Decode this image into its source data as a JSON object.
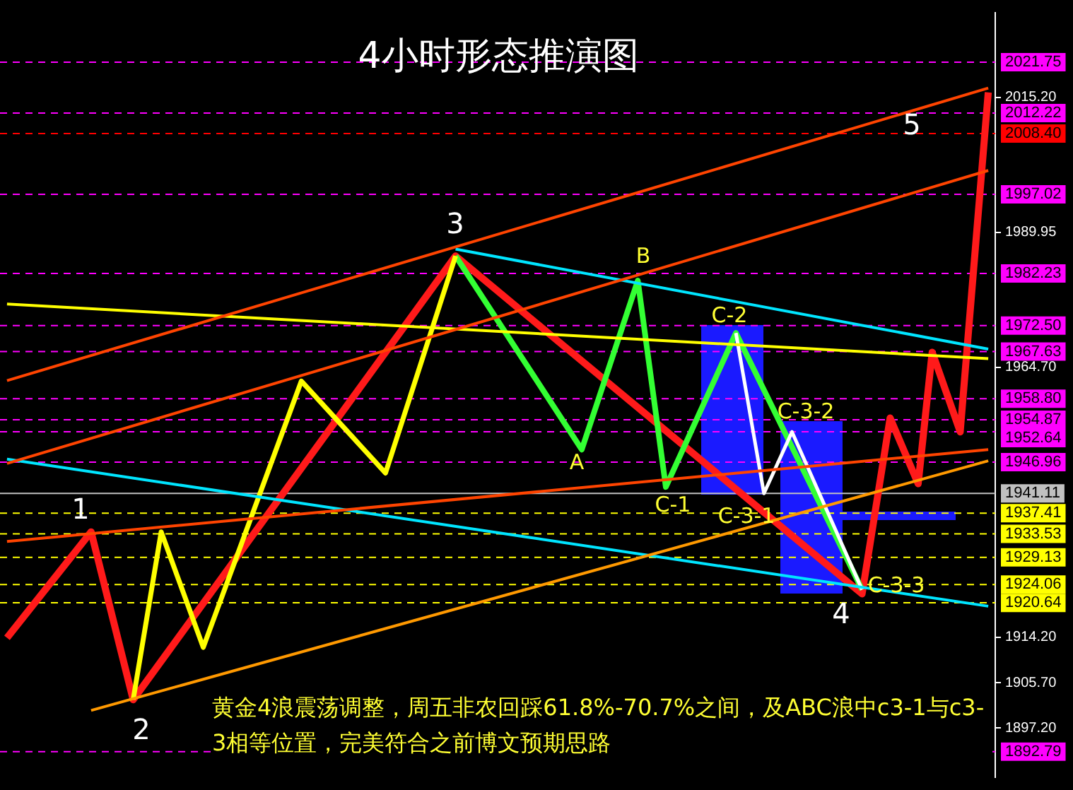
{
  "chart_data": {
    "type": "line",
    "title": "4小时形态推演图",
    "categories": [
      null,
      null,
      null,
      null,
      null,
      null,
      null,
      null,
      null,
      null,
      null,
      null,
      null,
      null,
      null,
      null,
      null,
      null,
      null,
      null,
      null,
      null,
      null,
      null,
      null,
      null,
      null,
      null,
      null,
      null,
      null,
      null,
      null,
      null,
      null,
      null,
      null,
      null,
      null,
      null,
      null,
      null,
      null,
      null,
      null,
      null,
      null,
      null,
      null,
      null,
      null,
      null,
      null,
      null,
      null,
      null,
      null,
      null,
      null,
      null,
      null,
      null,
      null,
      null,
      null,
      null,
      null,
      null,
      null,
      null,
      null
    ],
    "ylim": [
      1888,
      2031
    ],
    "yticks": [
      {
        "value": 2015.2,
        "label": "2015.20"
      },
      {
        "value": 1989.95,
        "label": "1989.95"
      },
      {
        "value": 1964.7,
        "label": "1964.70"
      },
      {
        "value": 1914.2,
        "label": "1914.20"
      },
      {
        "value": 1905.7,
        "label": "1905.70"
      },
      {
        "value": 1897.2,
        "label": "1897.20"
      }
    ],
    "tick_labels": "y",
    "grid": false,
    "legend": false,
    "marker": "none",
    "line_style": "solid",
    "series": [
      {
        "color": "#ff9900",
        "values": [
          null,
          null,
          null,
          null,
          null,
          null,
          1900.5,
          null,
          null,
          null,
          null,
          null,
          null,
          null,
          null,
          null,
          null,
          null,
          null,
          null,
          null,
          null,
          null,
          null,
          null,
          null,
          null,
          null,
          null,
          null,
          null,
          null,
          null,
          null,
          null,
          null,
          null,
          null,
          null,
          null,
          null,
          null,
          null,
          null,
          null,
          null,
          null,
          null,
          null,
          null,
          null,
          null,
          null,
          null,
          null,
          null,
          null,
          null,
          null,
          null,
          null,
          null,
          null,
          null,
          null,
          null,
          null,
          null,
          null,
          null,
          1947.2
        ]
      },
      {
        "color": "#ff4400",
        "values": [
          1932.1,
          null,
          null,
          null,
          null,
          null,
          null,
          null,
          null,
          null,
          null,
          null,
          null,
          null,
          null,
          null,
          null,
          null,
          null,
          null,
          null,
          null,
          null,
          null,
          null,
          null,
          null,
          null,
          null,
          null,
          null,
          null,
          null,
          null,
          null,
          null,
          null,
          null,
          null,
          null,
          null,
          null,
          null,
          null,
          null,
          null,
          null,
          null,
          null,
          null,
          null,
          null,
          null,
          null,
          null,
          null,
          null,
          null,
          null,
          null,
          null,
          null,
          null,
          null,
          null,
          null,
          null,
          null,
          null,
          null,
          1949.3
        ]
      },
      {
        "color": "#ff4400",
        "values": [
          1946.7,
          null,
          null,
          null,
          null,
          null,
          null,
          null,
          null,
          null,
          null,
          null,
          null,
          null,
          null,
          null,
          null,
          null,
          null,
          null,
          null,
          null,
          null,
          null,
          null,
          null,
          null,
          null,
          null,
          null,
          null,
          null,
          null,
          null,
          null,
          null,
          null,
          null,
          null,
          null,
          null,
          null,
          null,
          null,
          null,
          null,
          null,
          null,
          null,
          null,
          null,
          null,
          null,
          null,
          null,
          null,
          null,
          null,
          null,
          null,
          null,
          null,
          null,
          null,
          null,
          null,
          null,
          null,
          null,
          null,
          2001.5
        ]
      },
      {
        "color": "#ff4400",
        "values": [
          1962.2,
          null,
          null,
          null,
          null,
          null,
          null,
          null,
          null,
          null,
          null,
          null,
          null,
          null,
          null,
          null,
          null,
          null,
          null,
          null,
          null,
          null,
          null,
          null,
          null,
          null,
          null,
          null,
          null,
          null,
          null,
          null,
          null,
          null,
          null,
          null,
          null,
          null,
          null,
          null,
          null,
          null,
          null,
          null,
          null,
          null,
          null,
          null,
          null,
          null,
          null,
          null,
          null,
          null,
          null,
          null,
          null,
          null,
          null,
          null,
          null,
          null,
          null,
          null,
          null,
          null,
          null,
          null,
          null,
          null,
          2016.9
        ]
      },
      {
        "color": "#00e5ff",
        "values": [
          1947.5,
          null,
          null,
          null,
          null,
          null,
          null,
          null,
          null,
          null,
          null,
          null,
          null,
          null,
          null,
          null,
          null,
          null,
          null,
          null,
          null,
          null,
          null,
          null,
          null,
          null,
          null,
          null,
          null,
          null,
          null,
          null,
          null,
          null,
          null,
          null,
          null,
          null,
          null,
          null,
          null,
          null,
          null,
          null,
          null,
          null,
          null,
          null,
          null,
          null,
          null,
          null,
          null,
          null,
          null,
          null,
          null,
          null,
          null,
          null,
          null,
          null,
          null,
          null,
          null,
          null,
          null,
          null,
          null,
          null,
          1920.0
        ]
      },
      {
        "color": "#00e5ff",
        "values": [
          null,
          null,
          null,
          null,
          null,
          null,
          null,
          null,
          null,
          null,
          null,
          null,
          null,
          null,
          null,
          null,
          null,
          null,
          null,
          null,
          null,
          null,
          null,
          null,
          null,
          null,
          null,
          null,
          null,
          null,
          null,
          null,
          1986.8,
          null,
          null,
          null,
          null,
          null,
          null,
          null,
          null,
          null,
          null,
          null,
          null,
          null,
          null,
          null,
          null,
          null,
          null,
          null,
          null,
          null,
          null,
          null,
          null,
          null,
          null,
          null,
          null,
          null,
          null,
          null,
          null,
          null,
          null,
          null,
          null,
          null,
          1968.1
        ]
      },
      {
        "color": "#ffff00",
        "values": [
          1976.5,
          null,
          null,
          null,
          null,
          null,
          null,
          null,
          null,
          null,
          null,
          null,
          null,
          null,
          null,
          null,
          null,
          null,
          null,
          null,
          null,
          null,
          null,
          null,
          null,
          null,
          null,
          null,
          null,
          null,
          null,
          null,
          null,
          null,
          null,
          null,
          null,
          null,
          null,
          null,
          null,
          null,
          null,
          null,
          null,
          null,
          null,
          null,
          null,
          null,
          null,
          null,
          null,
          null,
          null,
          null,
          null,
          null,
          null,
          null,
          null,
          null,
          null,
          null,
          null,
          null,
          null,
          null,
          null,
          null,
          1966.3
        ]
      },
      {
        "color": "#ffff00",
        "values": [
          null,
          null,
          null,
          null,
          null,
          null,
          null,
          null,
          null,
          1902.5,
          null,
          1933.9,
          null,
          null,
          1912.3,
          null,
          null,
          null,
          null,
          null,
          null,
          1962.1,
          null,
          null,
          null,
          null,
          null,
          1944.9,
          null,
          null,
          null,
          null,
          1985.5,
          null,
          null,
          null,
          null,
          null,
          null,
          null,
          null,
          null,
          null,
          null,
          null,
          null,
          null,
          null,
          null,
          null,
          null,
          null,
          null,
          null,
          null,
          null,
          null,
          null,
          null,
          null,
          null,
          null,
          null,
          null,
          null,
          null,
          null,
          null,
          null,
          null,
          null
        ]
      },
      {
        "color": "#33ff33",
        "values": [
          null,
          null,
          null,
          null,
          null,
          null,
          null,
          null,
          null,
          null,
          null,
          null,
          null,
          null,
          null,
          null,
          null,
          null,
          null,
          null,
          null,
          null,
          null,
          null,
          null,
          null,
          null,
          null,
          null,
          null,
          null,
          null,
          1985.5,
          null,
          null,
          null,
          null,
          null,
          null,
          null,
          null,
          1949.3,
          null,
          null,
          null,
          1980.9,
          null,
          1942.3,
          null,
          null,
          null,
          null,
          1971.1,
          null,
          null,
          null,
          null,
          null,
          null,
          null,
          null,
          1923.1,
          null,
          null,
          null,
          null,
          null,
          null,
          null,
          null,
          null
        ]
      },
      {
        "color": "#ffffff",
        "values": [
          null,
          null,
          null,
          null,
          null,
          null,
          null,
          null,
          null,
          null,
          null,
          null,
          null,
          null,
          null,
          null,
          null,
          null,
          null,
          null,
          null,
          null,
          null,
          null,
          null,
          null,
          null,
          null,
          null,
          null,
          null,
          null,
          null,
          null,
          null,
          null,
          null,
          null,
          null,
          null,
          null,
          null,
          null,
          null,
          null,
          null,
          null,
          null,
          null,
          null,
          null,
          null,
          1971.1,
          null,
          1941.1,
          null,
          1952.6,
          null,
          null,
          null,
          null,
          1923.1,
          null,
          null,
          null,
          null,
          null,
          null,
          null,
          null,
          null
        ]
      },
      {
        "color": "#ff1a1a",
        "values": [
          1914.1,
          null,
          null,
          null,
          null,
          null,
          1933.9,
          null,
          null,
          1902.5,
          null,
          null,
          null,
          null,
          null,
          null,
          null,
          null,
          null,
          null,
          null,
          null,
          null,
          null,
          null,
          null,
          null,
          null,
          null,
          null,
          null,
          null,
          1985.5,
          null,
          null,
          null,
          null,
          null,
          null,
          null,
          null,
          null,
          null,
          null,
          null,
          null,
          null,
          null,
          null,
          null,
          null,
          null,
          null,
          null,
          null,
          null,
          null,
          null,
          null,
          null,
          null,
          1922.3,
          null,
          1955.2,
          null,
          1942.9,
          1967.5,
          null,
          1952.6,
          null,
          2016.1
        ]
      }
    ],
    "ref_lines": [
      {
        "axis": "y",
        "value": 2021.75,
        "label": "2021.75",
        "color": "#ff00ff",
        "line_style": "dashed"
      },
      {
        "axis": "y",
        "value": 2012.22,
        "label": "2012.22",
        "color": "#ff00ff",
        "line_style": "dashed"
      },
      {
        "axis": "y",
        "value": 2008.4,
        "label": "2008.40",
        "color": "#ff0000",
        "line_style": "dashed"
      },
      {
        "axis": "y",
        "value": 1997.02,
        "label": "1997.02",
        "color": "#ff00ff",
        "line_style": "dashed"
      },
      {
        "axis": "y",
        "value": 1982.23,
        "label": "1982.23",
        "color": "#ff00ff",
        "line_style": "dashed"
      },
      {
        "axis": "y",
        "value": 1972.5,
        "label": "1972.50",
        "color": "#ff00ff",
        "line_style": "dashed"
      },
      {
        "axis": "y",
        "value": 1967.63,
        "label": "1967.63",
        "color": "#ff00ff",
        "line_style": "dashed"
      },
      {
        "axis": "y",
        "value": 1958.8,
        "label": "1958.80",
        "color": "#ff00ff",
        "line_style": "dashed"
      },
      {
        "axis": "y",
        "value": 1954.87,
        "label": "1954.87",
        "color": "#ff00ff",
        "line_style": "dashed"
      },
      {
        "axis": "y",
        "value": 1952.64,
        "label": "1952.64",
        "color": "#ff00ff",
        "line_style": "dashed"
      },
      {
        "axis": "y",
        "value": 1946.96,
        "label": "1946.96",
        "color": "#ff00ff",
        "line_style": "dashed"
      },
      {
        "axis": "y",
        "value": 1941.11,
        "label": "1941.11",
        "color": "#c0c0c0",
        "line_style": "solid"
      },
      {
        "axis": "y",
        "value": 1937.41,
        "label": "1937.41",
        "color": "#ffff00",
        "line_style": "dashed"
      },
      {
        "axis": "y",
        "value": 1933.53,
        "label": "1933.53",
        "color": "#ffff00",
        "line_style": "dashed"
      },
      {
        "axis": "y",
        "value": 1929.13,
        "label": "1929.13",
        "color": "#ffff00",
        "line_style": "dashed"
      },
      {
        "axis": "y",
        "value": 1924.06,
        "label": "1924.06",
        "color": "#ffff00",
        "line_style": "dashed"
      },
      {
        "axis": "y",
        "value": 1920.64,
        "label": "1920.64",
        "color": "#ffff00",
        "line_style": "dashed"
      },
      {
        "axis": "y",
        "value": 1892.79,
        "label": "1892.79",
        "color": "#ff00ff",
        "line_style": "dashed"
      }
    ],
    "annotations": [
      "1",
      "2",
      "3",
      "4",
      "5",
      "A",
      "B",
      "C-1",
      "C-2",
      "C-3-1",
      "C-3-2",
      "C-3-3",
      "黄金4浪震荡调整，周五非农回踩61.8%-70.7%之间，及ABC浪中c3-1与c3-3相等位置，完美符合之前博文预期思路"
    ]
  }
}
